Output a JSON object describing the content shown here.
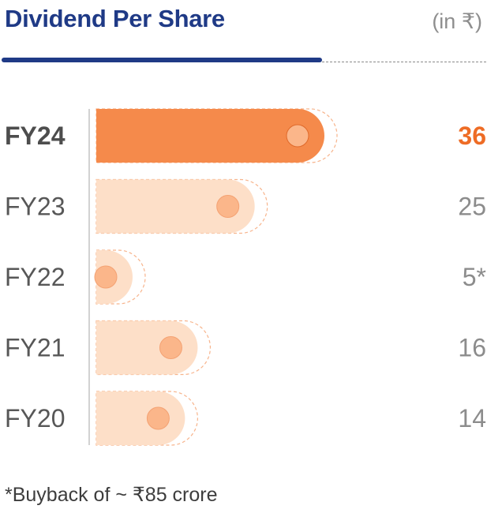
{
  "header": {
    "title": "Dividend Per Share",
    "unit": "(in ₹)"
  },
  "chart_data": {
    "type": "bar",
    "orientation": "horizontal",
    "title": "Dividend Per Share",
    "unit": "(in ₹)",
    "categories": [
      "FY24",
      "FY23",
      "FY22",
      "FY21",
      "FY20"
    ],
    "values": [
      36,
      25,
      5,
      16,
      14
    ],
    "value_labels": [
      "36",
      "25",
      "5*",
      "16",
      "14"
    ],
    "highlight": "FY24",
    "colors": {
      "highlight": "#F58A4B",
      "normal": "#FDDFC8",
      "knob": "#FBB68A",
      "highlight_text": "#EE6C25"
    },
    "xlim": [
      0,
      36
    ]
  },
  "footnote": "*Buyback of ~ ₹85 crore"
}
